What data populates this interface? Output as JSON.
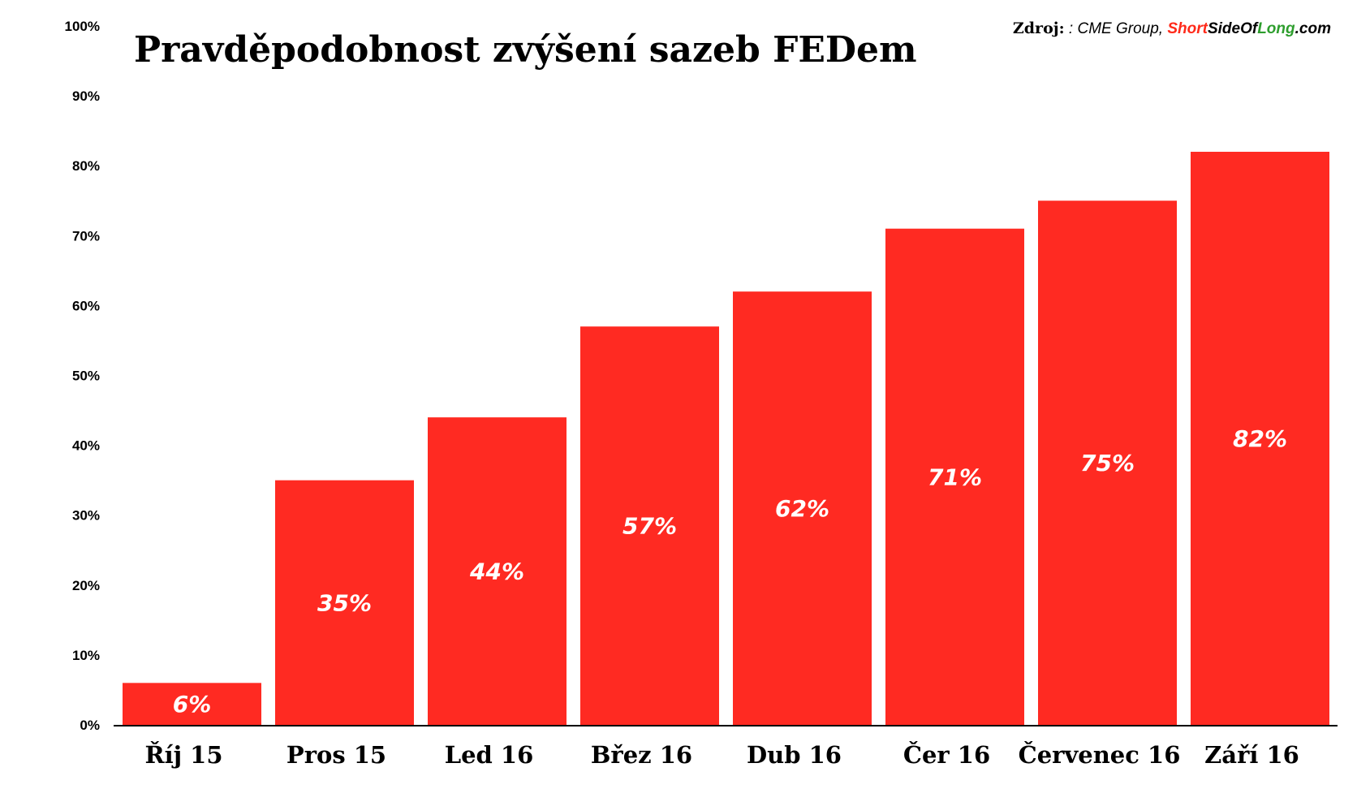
{
  "chart_data": {
    "type": "bar",
    "title": "Pravděpodobnost zvýšení sazeb FEDem",
    "categories": [
      "Říj 15",
      "Pros 15",
      "Led 16",
      "Břez 16",
      "Dub 16",
      "Čer 16",
      "Červenec 16",
      "Září 16"
    ],
    "values": [
      6,
      35,
      44,
      57,
      62,
      71,
      75,
      82
    ],
    "data_labels": [
      "6%",
      "35%",
      "44%",
      "57%",
      "62%",
      "71%",
      "75%",
      "82%"
    ],
    "xlabel": "",
    "ylabel": "",
    "ylim": [
      0,
      100
    ],
    "y_ticks": [
      "0%",
      "10%",
      "20%",
      "30%",
      "40%",
      "50%",
      "60%",
      "70%",
      "80%",
      "90%",
      "100%"
    ],
    "grid": false,
    "legend": "none",
    "bar_color": "#ff2a22"
  },
  "source": {
    "label": "Zdroj:",
    "text": ": CME Group,",
    "brand_parts": [
      "Short",
      "SideOf",
      "Long",
      ".com"
    ],
    "brand_colors": [
      "#ff2a1a",
      "#000000",
      "#2e9e2e",
      "#000000"
    ]
  }
}
